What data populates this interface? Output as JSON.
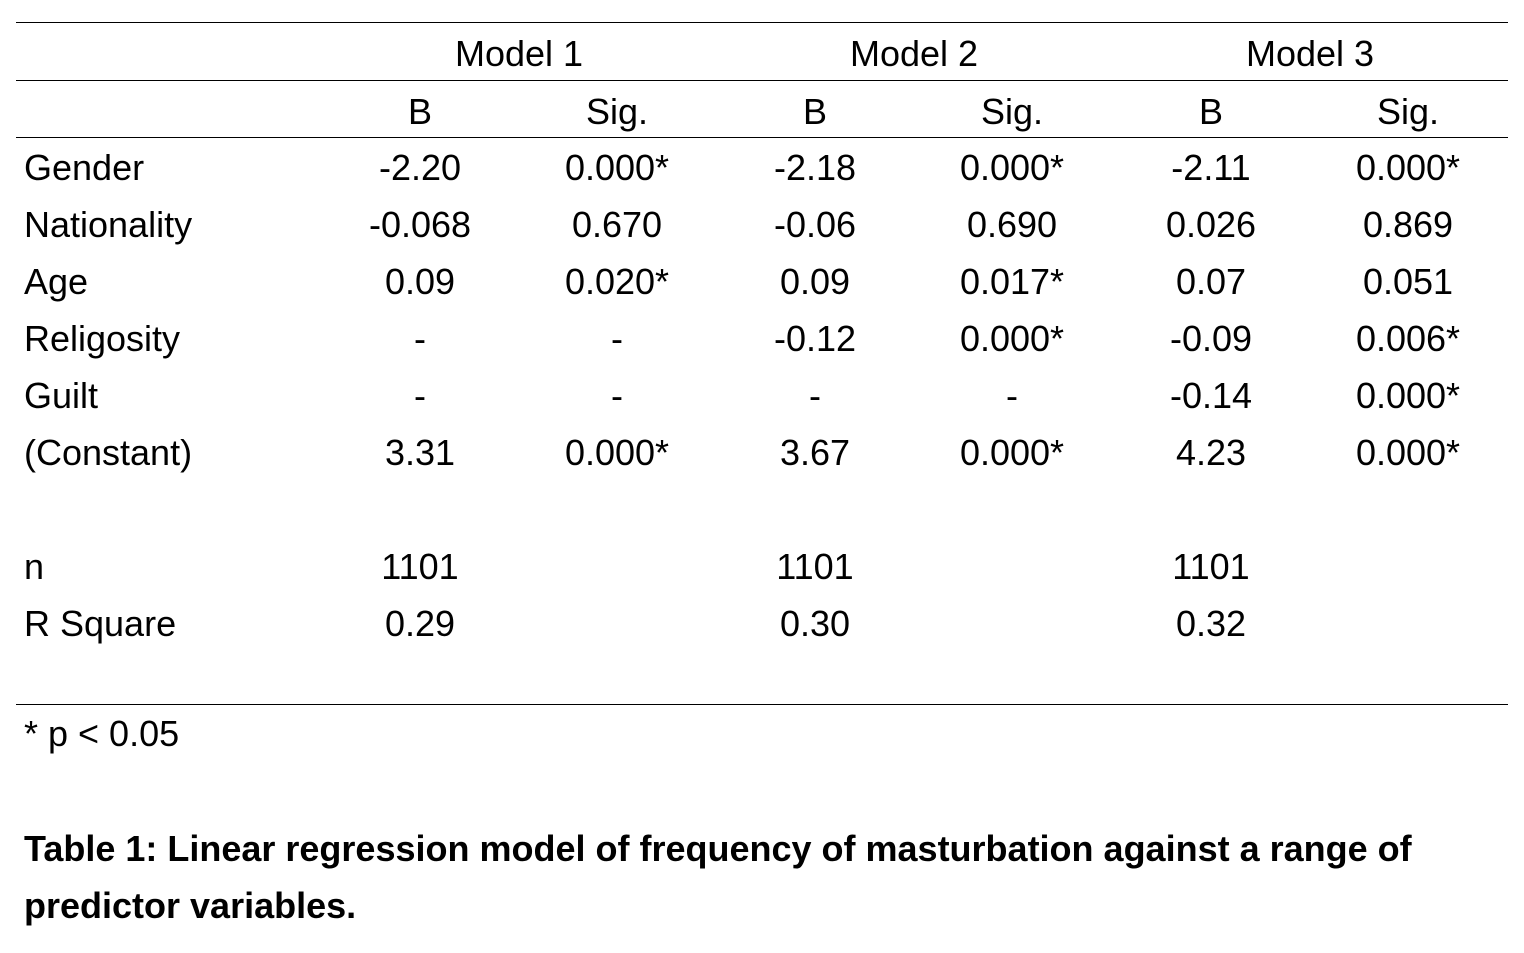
{
  "table": {
    "models": [
      "Model 1",
      "Model 2",
      "Model 3"
    ],
    "subheaders": [
      "B",
      "Sig.",
      "B",
      "Sig.",
      "B",
      "Sig."
    ],
    "rows": [
      {
        "label": "Gender",
        "values": [
          "-2.20",
          "0.000*",
          "-2.18",
          "0.000*",
          "-2.11",
          "0.000*"
        ]
      },
      {
        "label": "Nationality",
        "values": [
          "-0.068",
          "0.670",
          "-0.06",
          "0.690",
          "0.026",
          "0.869"
        ]
      },
      {
        "label": "Age",
        "values": [
          "0.09",
          "0.020*",
          "0.09",
          "0.017*",
          "0.07",
          "0.051"
        ]
      },
      {
        "label": "Religosity",
        "values": [
          "-",
          "-",
          "-0.12",
          "0.000*",
          "-0.09",
          "0.006*"
        ]
      },
      {
        "label": "Guilt",
        "values": [
          "-",
          "-",
          "-",
          "-",
          "-0.14",
          "0.000*"
        ]
      },
      {
        "label": "(Constant)",
        "values": [
          "3.31",
          "0.000*",
          "3.67",
          "0.000*",
          "4.23",
          "0.000*"
        ]
      }
    ],
    "stats": [
      {
        "label": "n",
        "values": [
          "1101",
          "1101",
          "1101"
        ]
      },
      {
        "label": "R Square",
        "values": [
          "0.29",
          "0.30",
          "0.32"
        ]
      }
    ]
  },
  "footnote": "* p < 0.05",
  "caption": "Table 1: Linear regression model of frequency of masturbation against a range of predictor variables."
}
